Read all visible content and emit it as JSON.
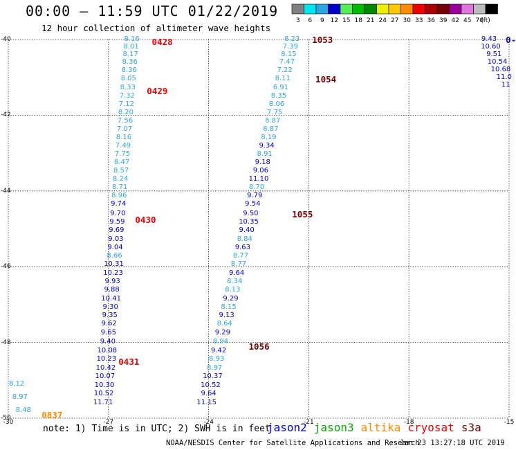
{
  "header": {
    "title": "00:00 – 11:59 UTC 01/22/2019",
    "subtitle": "12 hour collection of altimeter wave heights"
  },
  "colorbar": {
    "unit_label": "(ft)",
    "bins": [
      {
        "color": "#808080",
        "label": "3"
      },
      {
        "color": "#00e5ee",
        "label": "6"
      },
      {
        "color": "#2ca6e0",
        "label": "9"
      },
      {
        "color": "#0000cd",
        "label": "12"
      },
      {
        "color": "#55ee55",
        "label": "15"
      },
      {
        "color": "#00bb00",
        "label": "18"
      },
      {
        "color": "#008800",
        "label": "21"
      },
      {
        "color": "#eeee00",
        "label": "24"
      },
      {
        "color": "#ffc800",
        "label": "27"
      },
      {
        "color": "#ff8c00",
        "label": "30"
      },
      {
        "color": "#ee0000",
        "label": "33"
      },
      {
        "color": "#aa0000",
        "label": "36"
      },
      {
        "color": "#770000",
        "label": "39"
      },
      {
        "color": "#990099",
        "label": "42"
      },
      {
        "color": "#dd77dd",
        "label": "45"
      },
      {
        "color": "#bbbbbb",
        "label": "70"
      },
      {
        "color": "#000000",
        "label": ""
      }
    ]
  },
  "axes": {
    "lon_ticks": [
      -30,
      -27,
      -24,
      -21,
      -18,
      -15
    ],
    "lat_ticks": [
      -40,
      -42,
      -44,
      -46,
      -48,
      -50
    ],
    "lon_range": [
      -30,
      -15
    ],
    "lat_range": [
      -50,
      -40
    ],
    "grid": true
  },
  "passes": [
    {
      "label": "0428",
      "color": "#ee0000",
      "lon": -25.7,
      "lat": -40.05
    },
    {
      "label": "0429",
      "color": "#ee0000",
      "lon": -25.85,
      "lat": -41.35
    },
    {
      "label": "0430",
      "color": "#ee0000",
      "lon": -26.2,
      "lat": -44.75
    },
    {
      "label": "0431",
      "color": "#ee0000",
      "lon": -26.7,
      "lat": -48.5
    },
    {
      "label": "0837",
      "color": "#ff8c00",
      "lon": -29.0,
      "lat": -49.9
    },
    {
      "label": "1053",
      "color": "#770000",
      "lon": -20.9,
      "lat": -40.0
    },
    {
      "label": "1054",
      "color": "#770000",
      "lon": -20.8,
      "lat": -41.05
    },
    {
      "label": "1055",
      "color": "#770000",
      "lon": -21.5,
      "lat": -44.6
    },
    {
      "label": "1056",
      "color": "#770000",
      "lon": -22.8,
      "lat": -48.1
    },
    {
      "label": "0-",
      "color": "#0000cd",
      "lon": -15.1,
      "lat": -40.0
    }
  ],
  "tracks": [
    {
      "name": "track-a",
      "points": [
        {
          "v": "8.16",
          "lon": -26.3,
          "lat": -40.0,
          "color": "#2ca6e0"
        },
        {
          "v": "8.01",
          "lon": -26.32,
          "lat": -40.2,
          "color": "#2ca6e0"
        },
        {
          "v": "8.17",
          "lon": -26.34,
          "lat": -40.4,
          "color": "#2ca6e0"
        },
        {
          "v": "8.36",
          "lon": -26.36,
          "lat": -40.6,
          "color": "#2ca6e0"
        },
        {
          "v": "8.36",
          "lon": -26.38,
          "lat": -40.82,
          "color": "#2ca6e0"
        },
        {
          "v": "8.05",
          "lon": -26.4,
          "lat": -41.04,
          "color": "#2ca6e0"
        },
        {
          "v": "8.33",
          "lon": -26.42,
          "lat": -41.28,
          "color": "#2ca6e0"
        },
        {
          "v": "7.32",
          "lon": -26.44,
          "lat": -41.5,
          "color": "#2ca6e0"
        },
        {
          "v": "7.12",
          "lon": -26.46,
          "lat": -41.72,
          "color": "#2ca6e0"
        },
        {
          "v": "8.20",
          "lon": -26.48,
          "lat": -41.94,
          "color": "#2ca6e0"
        },
        {
          "v": "7.56",
          "lon": -26.5,
          "lat": -42.16,
          "color": "#2ca6e0"
        },
        {
          "v": "7.07",
          "lon": -26.52,
          "lat": -42.38,
          "color": "#2ca6e0"
        },
        {
          "v": "8.16",
          "lon": -26.54,
          "lat": -42.6,
          "color": "#2ca6e0"
        },
        {
          "v": "7.49",
          "lon": -26.56,
          "lat": -42.82,
          "color": "#2ca6e0"
        },
        {
          "v": "7.75",
          "lon": -26.58,
          "lat": -43.04,
          "color": "#2ca6e0"
        },
        {
          "v": "8.47",
          "lon": -26.6,
          "lat": -43.26,
          "color": "#2ca6e0"
        },
        {
          "v": "8.57",
          "lon": -26.62,
          "lat": -43.48,
          "color": "#2ca6e0"
        },
        {
          "v": "8.24",
          "lon": -26.64,
          "lat": -43.7,
          "color": "#2ca6e0"
        },
        {
          "v": "8.71",
          "lon": -26.66,
          "lat": -43.92,
          "color": "#2ca6e0"
        },
        {
          "v": "8.96",
          "lon": -26.68,
          "lat": -44.14,
          "color": "#2ca6e0"
        },
        {
          "v": "9.74",
          "lon": -26.7,
          "lat": -44.36,
          "color": "#0000cd"
        },
        {
          "v": "9.70",
          "lon": -26.72,
          "lat": -44.6,
          "color": "#0000cd"
        },
        {
          "v": "9.59",
          "lon": -26.74,
          "lat": -44.82,
          "color": "#0000cd"
        },
        {
          "v": "9.69",
          "lon": -26.76,
          "lat": -45.04,
          "color": "#0000cd"
        },
        {
          "v": "9.03",
          "lon": -26.78,
          "lat": -45.28,
          "color": "#0000cd"
        },
        {
          "v": "9.04",
          "lon": -26.8,
          "lat": -45.5,
          "color": "#0000cd"
        },
        {
          "v": "8.66",
          "lon": -26.82,
          "lat": -45.72,
          "color": "#2ca6e0"
        },
        {
          "v": "10.31",
          "lon": -26.84,
          "lat": -45.94,
          "color": "#0000cd"
        },
        {
          "v": "10.23",
          "lon": -26.86,
          "lat": -46.18,
          "color": "#0000cd"
        },
        {
          "v": "9.93",
          "lon": -26.88,
          "lat": -46.4,
          "color": "#0000cd"
        },
        {
          "v": "9.88",
          "lon": -26.9,
          "lat": -46.62,
          "color": "#0000cd"
        },
        {
          "v": "10.41",
          "lon": -26.92,
          "lat": -46.86,
          "color": "#0000cd"
        },
        {
          "v": "9.30",
          "lon": -26.94,
          "lat": -47.08,
          "color": "#0000cd"
        },
        {
          "v": "9.35",
          "lon": -26.96,
          "lat": -47.3,
          "color": "#0000cd"
        },
        {
          "v": "9.62",
          "lon": -26.98,
          "lat": -47.52,
          "color": "#0000cd"
        },
        {
          "v": "9.65",
          "lon": -27.0,
          "lat": -47.76,
          "color": "#0000cd"
        },
        {
          "v": "9.40",
          "lon": -27.02,
          "lat": -47.98,
          "color": "#0000cd"
        },
        {
          "v": "10.08",
          "lon": -27.04,
          "lat": -48.22,
          "color": "#0000cd"
        },
        {
          "v": "10.23",
          "lon": -27.06,
          "lat": -48.44,
          "color": "#0000cd"
        },
        {
          "v": "10.42",
          "lon": -27.08,
          "lat": -48.68,
          "color": "#0000cd"
        },
        {
          "v": "10.07",
          "lon": -27.1,
          "lat": -48.9,
          "color": "#0000cd"
        },
        {
          "v": "10.30",
          "lon": -27.12,
          "lat": -49.14,
          "color": "#0000cd"
        },
        {
          "v": "10.52",
          "lon": -27.14,
          "lat": -49.36,
          "color": "#0000cd"
        },
        {
          "v": "11.71",
          "lon": -27.16,
          "lat": -49.6,
          "color": "#0000cd"
        }
      ]
    },
    {
      "name": "track-b",
      "points": [
        {
          "v": "8.23",
          "lon": -21.5,
          "lat": -40.0,
          "color": "#2ca6e0"
        },
        {
          "v": "7.39",
          "lon": -21.55,
          "lat": -40.2,
          "color": "#2ca6e0"
        },
        {
          "v": "8.15",
          "lon": -21.6,
          "lat": -40.4,
          "color": "#2ca6e0"
        },
        {
          "v": "7.47",
          "lon": -21.65,
          "lat": -40.6,
          "color": "#2ca6e0"
        },
        {
          "v": "7.22",
          "lon": -21.72,
          "lat": -40.82,
          "color": "#2ca6e0"
        },
        {
          "v": "8.11",
          "lon": -21.78,
          "lat": -41.04,
          "color": "#2ca6e0"
        },
        {
          "v": "6.91",
          "lon": -21.84,
          "lat": -41.28,
          "color": "#2ca6e0"
        },
        {
          "v": "8.35",
          "lon": -21.9,
          "lat": -41.5,
          "color": "#2ca6e0"
        },
        {
          "v": "8.06",
          "lon": -21.96,
          "lat": -41.72,
          "color": "#2ca6e0"
        },
        {
          "v": "7.75",
          "lon": -22.02,
          "lat": -41.94,
          "color": "#2ca6e0"
        },
        {
          "v": "6.87",
          "lon": -22.08,
          "lat": -42.16,
          "color": "#2ca6e0"
        },
        {
          "v": "8.87",
          "lon": -22.14,
          "lat": -42.38,
          "color": "#2ca6e0"
        },
        {
          "v": "8.19",
          "lon": -22.2,
          "lat": -42.6,
          "color": "#2ca6e0"
        },
        {
          "v": "9.34",
          "lon": -22.26,
          "lat": -42.82,
          "color": "#0000cd"
        },
        {
          "v": "8.91",
          "lon": -22.32,
          "lat": -43.04,
          "color": "#2ca6e0"
        },
        {
          "v": "9.18",
          "lon": -22.38,
          "lat": -43.26,
          "color": "#0000cd"
        },
        {
          "v": "9.06",
          "lon": -22.44,
          "lat": -43.48,
          "color": "#0000cd"
        },
        {
          "v": "11.10",
          "lon": -22.5,
          "lat": -43.7,
          "color": "#0000cd"
        },
        {
          "v": "8.70",
          "lon": -22.56,
          "lat": -43.92,
          "color": "#2ca6e0"
        },
        {
          "v": "9.79",
          "lon": -22.62,
          "lat": -44.14,
          "color": "#0000cd"
        },
        {
          "v": "9.54",
          "lon": -22.68,
          "lat": -44.36,
          "color": "#0000cd"
        },
        {
          "v": "9.50",
          "lon": -22.74,
          "lat": -44.6,
          "color": "#0000cd"
        },
        {
          "v": "10.35",
          "lon": -22.8,
          "lat": -44.82,
          "color": "#0000cd"
        },
        {
          "v": "9.40",
          "lon": -22.86,
          "lat": -45.04,
          "color": "#0000cd"
        },
        {
          "v": "8.84",
          "lon": -22.92,
          "lat": -45.28,
          "color": "#2ca6e0"
        },
        {
          "v": "9.63",
          "lon": -22.98,
          "lat": -45.5,
          "color": "#0000cd"
        },
        {
          "v": "8.77",
          "lon": -23.04,
          "lat": -45.72,
          "color": "#2ca6e0"
        },
        {
          "v": "8.77",
          "lon": -23.1,
          "lat": -45.94,
          "color": "#2ca6e0"
        },
        {
          "v": "9.64",
          "lon": -23.16,
          "lat": -46.18,
          "color": "#0000cd"
        },
        {
          "v": "8.34",
          "lon": -23.22,
          "lat": -46.4,
          "color": "#2ca6e0"
        },
        {
          "v": "8.13",
          "lon": -23.28,
          "lat": -46.62,
          "color": "#2ca6e0"
        },
        {
          "v": "9.29",
          "lon": -23.34,
          "lat": -46.86,
          "color": "#0000cd"
        },
        {
          "v": "8.15",
          "lon": -23.4,
          "lat": -47.08,
          "color": "#2ca6e0"
        },
        {
          "v": "9.13",
          "lon": -23.46,
          "lat": -47.3,
          "color": "#0000cd"
        },
        {
          "v": "8.64",
          "lon": -23.52,
          "lat": -47.52,
          "color": "#2ca6e0"
        },
        {
          "v": "9.29",
          "lon": -23.58,
          "lat": -47.76,
          "color": "#0000cd"
        },
        {
          "v": "8.94",
          "lon": -23.64,
          "lat": -47.98,
          "color": "#2ca6e0"
        },
        {
          "v": "9.42",
          "lon": -23.7,
          "lat": -48.22,
          "color": "#0000cd"
        },
        {
          "v": "8.93",
          "lon": -23.76,
          "lat": -48.44,
          "color": "#2ca6e0"
        },
        {
          "v": "8.97",
          "lon": -23.82,
          "lat": -48.68,
          "color": "#2ca6e0"
        },
        {
          "v": "10.37",
          "lon": -23.88,
          "lat": -48.9,
          "color": "#0000cd"
        },
        {
          "v": "10.52",
          "lon": -23.94,
          "lat": -49.14,
          "color": "#0000cd"
        },
        {
          "v": "9.64",
          "lon": -24.0,
          "lat": -49.36,
          "color": "#0000cd"
        },
        {
          "v": "11.15",
          "lon": -24.06,
          "lat": -49.6,
          "color": "#0000cd"
        }
      ]
    },
    {
      "name": "track-c",
      "points": [
        {
          "v": "9.43",
          "lon": -15.6,
          "lat": -40.0,
          "color": "#0000cd"
        },
        {
          "v": "10.60",
          "lon": -15.55,
          "lat": -40.2,
          "color": "#0000cd"
        },
        {
          "v": "9.51",
          "lon": -15.45,
          "lat": -40.4,
          "color": "#0000cd"
        },
        {
          "v": "10.54",
          "lon": -15.35,
          "lat": -40.6,
          "color": "#0000cd"
        },
        {
          "v": "10.68",
          "lon": -15.25,
          "lat": -40.8,
          "color": "#0000cd"
        },
        {
          "v": "11.0",
          "lon": -15.15,
          "lat": -41.0,
          "color": "#0000cd"
        },
        {
          "v": "11",
          "lon": -15.1,
          "lat": -41.2,
          "color": "#0000cd"
        }
      ]
    },
    {
      "name": "track-d",
      "points": [
        {
          "v": "8.12",
          "lon": -29.75,
          "lat": -49.1,
          "color": "#2ca6e0"
        },
        {
          "v": "8.97",
          "lon": -29.65,
          "lat": -49.45,
          "color": "#2ca6e0"
        },
        {
          "v": "8.48",
          "lon": -29.55,
          "lat": -49.8,
          "color": "#2ca6e0"
        }
      ]
    }
  ],
  "note": {
    "text": "note: 1) Time is in UTC; 2) SWH is in feet"
  },
  "legend": [
    {
      "label": "jason2",
      "color": "#0000cd"
    },
    {
      "label": "jason3",
      "color": "#00aa00"
    },
    {
      "label": "altika",
      "color": "#ff8c00"
    },
    {
      "label": "cryosat",
      "color": "#ee0000"
    },
    {
      "label": "s3a",
      "color": "#770000"
    }
  ],
  "footer": {
    "left": "NOAA/NESDIS Center for Satellite Applications and Research",
    "right": "Jan 23 13:27:18 UTC 2019"
  }
}
